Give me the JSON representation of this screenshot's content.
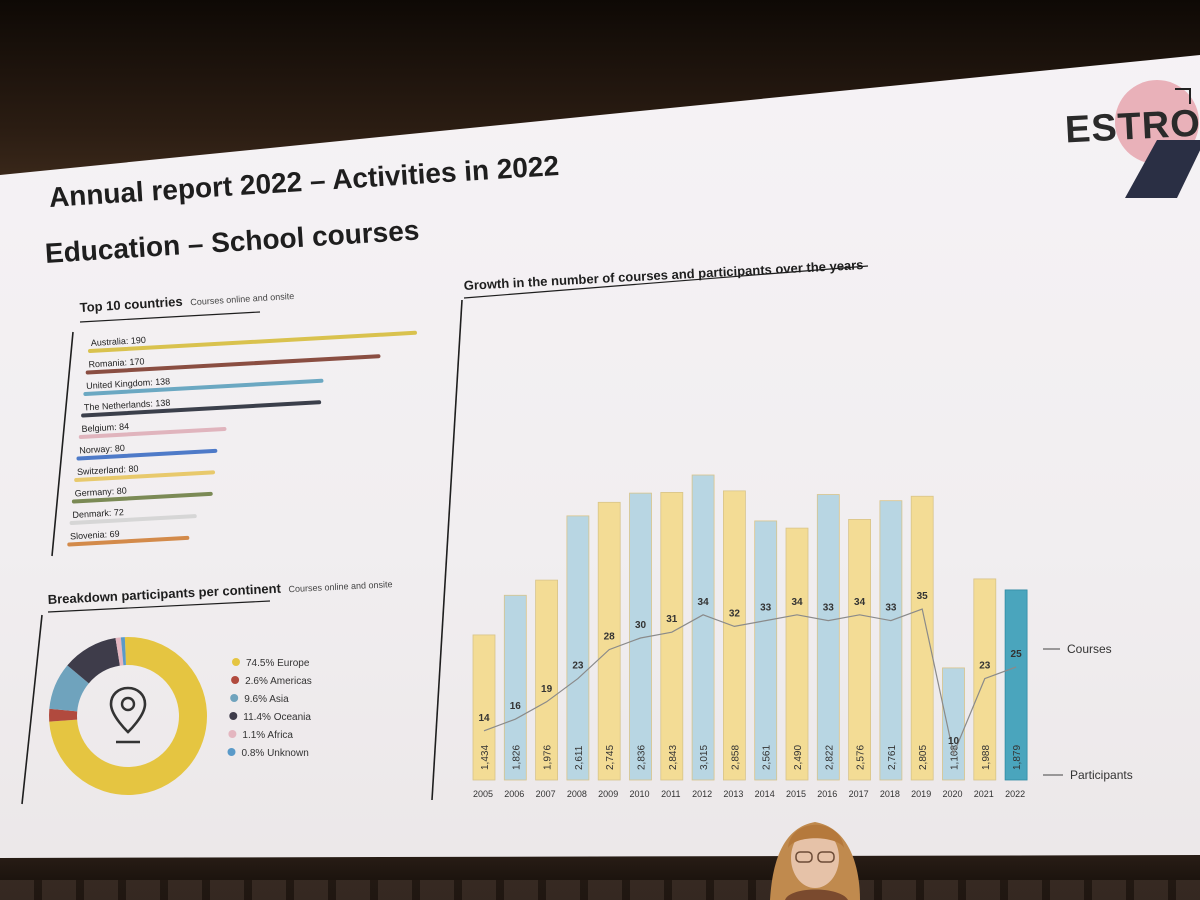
{
  "slide": {
    "title": "Annual report 2022 – Activities in 2022",
    "subtitle": "Education – School courses",
    "logo_text": "ESTRO"
  },
  "chart_data": [
    {
      "type": "bar",
      "title": "Top 10 countries",
      "subtitle": "Courses online and onsite",
      "orientation": "horizontal",
      "categories": [
        "Australia",
        "Romania",
        "United Kingdom",
        "The Netherlands",
        "Belgium",
        "Norway",
        "Switzerland",
        "Germany",
        "Denmark",
        "Slovenia"
      ],
      "values": [
        190,
        170,
        138,
        138,
        84,
        80,
        80,
        80,
        72,
        69
      ],
      "labels": [
        "Australia: 190",
        "Romania: 170",
        "United Kingdom: 138",
        "The Netherlands: 138",
        "Belgium: 84",
        "Norway: 80",
        "Switzerland: 80",
        "Germany: 80",
        "Denmark: 72",
        "Slovenia: 69"
      ],
      "colors": [
        "#d9c24e",
        "#8a4e42",
        "#6ba8c2",
        "#3b3f4b",
        "#e0b4bd",
        "#4e7ac8",
        "#e8c96c",
        "#7b8a55",
        "#d6d6d6",
        "#d38a4a"
      ]
    },
    {
      "type": "pie",
      "title": "Breakdown participants per continent",
      "subtitle": "Courses online and onsite",
      "donut": true,
      "slices": [
        {
          "label": "74.5% Europe",
          "value": 74.5,
          "color": "#e5c541"
        },
        {
          "label": "2.6% Americas",
          "value": 2.6,
          "color": "#b14a3e"
        },
        {
          "label": "9.6% Asia",
          "value": 9.6,
          "color": "#6fa3bd"
        },
        {
          "label": "11.4% Oceania",
          "value": 11.4,
          "color": "#3e3c4a"
        },
        {
          "label": "1.1% Africa",
          "value": 1.1,
          "color": "#e4b6c0"
        },
        {
          "label": "0.8% Unknown",
          "value": 0.8,
          "color": "#5a9ac8"
        }
      ],
      "legend_position": "right",
      "center_icon": "location-pin-icon"
    },
    {
      "type": "bar",
      "title": "Growth in the number of courses and participants over the years",
      "categories": [
        "2005",
        "2006",
        "2007",
        "2008",
        "2009",
        "2010",
        "2011",
        "2012",
        "2013",
        "2014",
        "2015",
        "2016",
        "2017",
        "2018",
        "2019",
        "2020",
        "2021",
        "2022"
      ],
      "series": [
        {
          "name": "Participants",
          "values": [
            1434,
            1826,
            1976,
            2611,
            2745,
            2836,
            2843,
            3015,
            2858,
            2561,
            2490,
            2822,
            2576,
            2761,
            2805,
            1108,
            1988,
            1879
          ],
          "labels": [
            "1,434",
            "1,826",
            "1,976",
            "2,611",
            "2,745",
            "2,836",
            "2,843",
            "3,015",
            "2,858",
            "2,561",
            "2,490",
            "2,822",
            "2,576",
            "2,761",
            "2,805",
            "1,108",
            "1,988",
            "1,879"
          ],
          "chart": "bar"
        },
        {
          "name": "Courses",
          "values": [
            14,
            16,
            19,
            23,
            28,
            30,
            31,
            34,
            32,
            33,
            34,
            33,
            34,
            33,
            35,
            10,
            23,
            25
          ],
          "chart": "line"
        }
      ],
      "bar_colors": [
        "#f3dc95",
        "#b8d6e3",
        "#f3dc95",
        "#b8d6e3",
        "#f3dc95",
        "#b8d6e3",
        "#f3dc95",
        "#b8d6e3",
        "#f3dc95",
        "#b8d6e3",
        "#f3dc95",
        "#b8d6e3",
        "#f3dc95",
        "#b8d6e3",
        "#f3dc95",
        "#b8d6e3",
        "#f3dc95",
        "#4aa5bd"
      ],
      "ylim": [
        0,
        3200
      ]
    }
  ]
}
